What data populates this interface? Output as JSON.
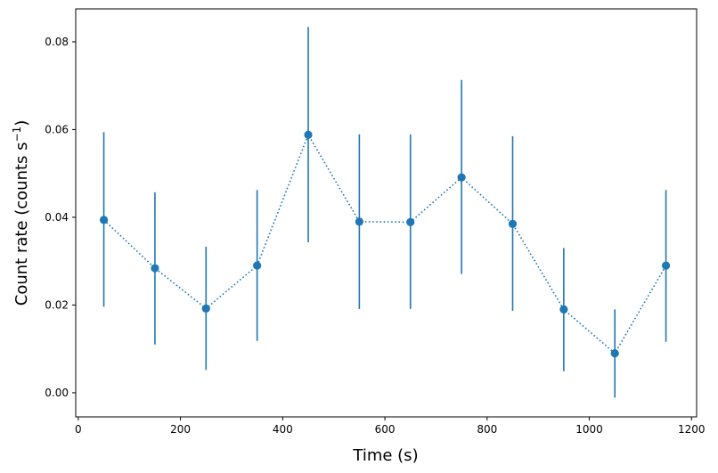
{
  "chart_data": {
    "type": "scatter",
    "xlabel": "Time (s)",
    "ylabel": "Count rate (counts s",
    "ylabel_sup": "−1",
    "ylabel_end": ")",
    "xlim": [
      -5,
      1210
    ],
    "ylim": [
      -0.0055,
      0.0875
    ],
    "x_ticks": [
      0,
      200,
      400,
      600,
      800,
      1000,
      1200
    ],
    "x_tick_labels": [
      "0",
      "200",
      "400",
      "600",
      "800",
      "1000",
      "1200"
    ],
    "y_ticks": [
      0.0,
      0.02,
      0.04,
      0.06,
      0.08
    ],
    "y_tick_labels": [
      "0.00",
      "0.02",
      "0.04",
      "0.06",
      "0.08"
    ],
    "grid": false,
    "line_style": "dotted",
    "marker": "circle",
    "color": "#1f77b4",
    "series": [
      {
        "x": [
          50,
          150,
          250,
          350,
          450,
          550,
          650,
          750,
          850,
          950,
          1050,
          1150
        ],
        "y": [
          0.0394,
          0.0284,
          0.0192,
          0.029,
          0.0588,
          0.039,
          0.0389,
          0.0491,
          0.0385,
          0.019,
          0.009,
          0.029
        ],
        "yerr_low": [
          0.0198,
          0.0174,
          0.014,
          0.0172,
          0.0245,
          0.0199,
          0.0198,
          0.022,
          0.0198,
          0.0141,
          0.0101,
          0.0174
        ],
        "yerr_high": [
          0.02,
          0.0173,
          0.0141,
          0.0172,
          0.0246,
          0.0199,
          0.02,
          0.0222,
          0.02,
          0.014,
          0.01,
          0.0172
        ]
      }
    ]
  }
}
